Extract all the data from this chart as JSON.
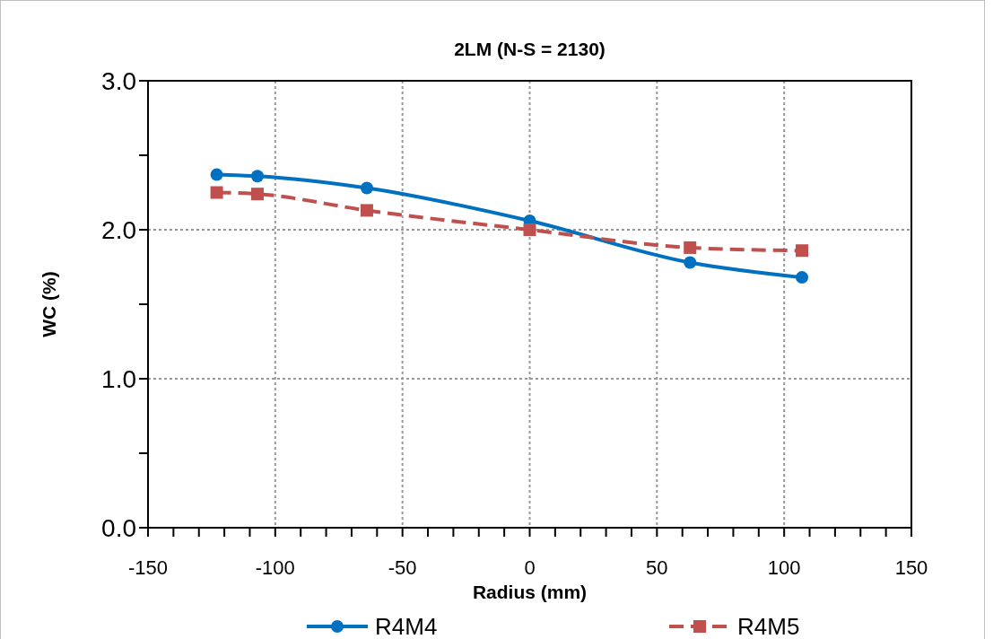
{
  "chart_data": {
    "type": "line",
    "title": "2LM (N-S = 2130)",
    "xlabel": "Radius (mm)",
    "ylabel": "WC (%)",
    "xlim": [
      -150,
      150
    ],
    "ylim": [
      0,
      3
    ],
    "xticks": [
      -150,
      {
        "value": -140,
        "label": null
      },
      {
        "value": -130,
        "label": null
      },
      {
        "value": -120,
        "label": null
      },
      {
        "value": -110,
        "label": null
      },
      -100,
      {
        "value": -90,
        "label": null
      },
      {
        "value": -80,
        "label": null
      },
      {
        "value": -70,
        "label": null
      },
      {
        "value": -60,
        "label": null
      },
      -50,
      {
        "value": -40,
        "label": null
      },
      {
        "value": -30,
        "label": null
      },
      {
        "value": -20,
        "label": null
      },
      {
        "value": -10,
        "label": null
      },
      0,
      {
        "value": 10,
        "label": null
      },
      {
        "value": 20,
        "label": null
      },
      {
        "value": 30,
        "label": null
      },
      {
        "value": 40,
        "label": null
      },
      50,
      {
        "value": 60,
        "label": null
      },
      {
        "value": 70,
        "label": null
      },
      {
        "value": 80,
        "label": null
      },
      {
        "value": 90,
        "label": null
      },
      100,
      {
        "value": 110,
        "label": null
      },
      {
        "value": 120,
        "label": null
      },
      {
        "value": 130,
        "label": null
      },
      {
        "value": 140,
        "label": null
      },
      150
    ],
    "yticks": [
      {
        "value": 0,
        "label": "0.0"
      },
      {
        "value": 0.5,
        "label": null
      },
      {
        "value": 1,
        "label": "1.0"
      },
      {
        "value": 1.5,
        "label": null
      },
      {
        "value": 2,
        "label": "2.0"
      },
      {
        "value": 2.5,
        "label": null
      },
      {
        "value": 3,
        "label": "3.0"
      }
    ],
    "grid": true,
    "legend": "bottom",
    "series": [
      {
        "name": "R4M4",
        "color": "#0070c0",
        "marker": "circle",
        "line_style": "solid",
        "x": [
          -123,
          -107,
          -64,
          0,
          63,
          107
        ],
        "values": [
          2.37,
          2.36,
          2.28,
          2.06,
          1.78,
          1.68
        ]
      },
      {
        "name": "R4M5",
        "color": "#c0504d",
        "marker": "square",
        "line_style": "dashed",
        "x": [
          -123,
          -107,
          -64,
          0,
          63,
          107
        ],
        "values": [
          2.25,
          2.24,
          2.13,
          2.0,
          1.88,
          1.86
        ]
      }
    ]
  }
}
